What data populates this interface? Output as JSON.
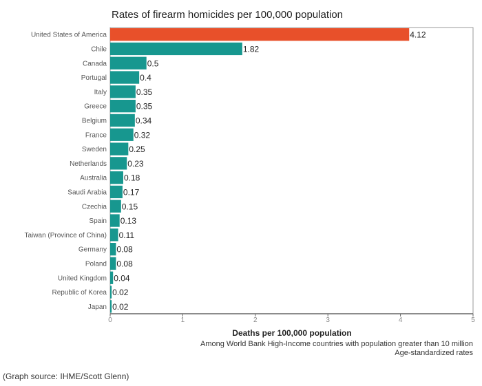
{
  "chart_data": {
    "type": "bar",
    "orientation": "horizontal",
    "title": "Rates of firearm homicides per 100,000 population",
    "xlabel": "Deaths per 100,000 population",
    "notes": [
      "Among World Bank High-Income countries with population greater than 10 million",
      "Age-standardized rates"
    ],
    "xlim": [
      0,
      5
    ],
    "xticks": [
      "0",
      "1",
      "2",
      "3",
      "4",
      "5"
    ],
    "grid": false,
    "categories": [
      "United States of America",
      "Chile",
      "Canada",
      "Portugal",
      "Italy",
      "Greece",
      "Belgium",
      "France",
      "Sweden",
      "Netherlands",
      "Australia",
      "Saudi Arabia",
      "Czechia",
      "Spain",
      "Taiwan (Province of China)",
      "Germany",
      "Poland",
      "United Kingdom",
      "Republic of Korea",
      "Japan"
    ],
    "values": [
      4.12,
      1.82,
      0.5,
      0.4,
      0.35,
      0.35,
      0.34,
      0.32,
      0.25,
      0.23,
      0.18,
      0.17,
      0.15,
      0.13,
      0.11,
      0.08,
      0.08,
      0.04,
      0.02,
      0.02
    ],
    "value_labels": [
      "4.12",
      "1.82",
      "0.5",
      "0.4",
      "0.35",
      "0.35",
      "0.34",
      "0.32",
      "0.25",
      "0.23",
      "0.18",
      "0.17",
      "0.15",
      "0.13",
      "0.11",
      "0.08",
      "0.08",
      "0.04",
      "0.02",
      "0.02"
    ],
    "colors": {
      "highlight": "#e8502a",
      "default": "#17978f"
    },
    "highlight_category": "United States of America"
  },
  "source": "(Graph source: IHME/Scott Glenn)"
}
